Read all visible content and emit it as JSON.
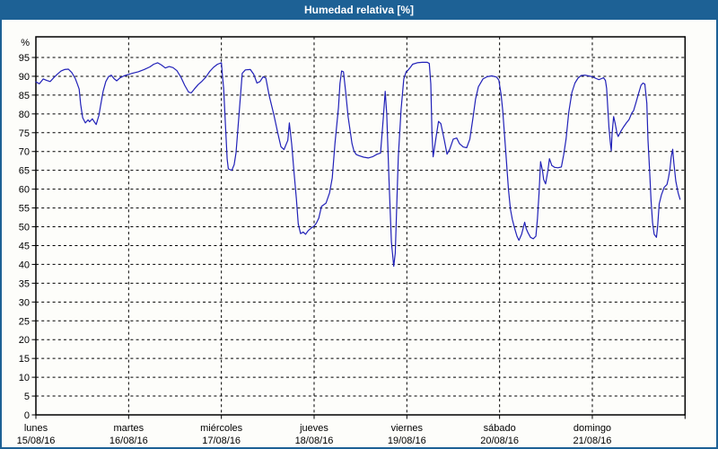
{
  "window": {
    "title": "Humedad relativa [%]"
  },
  "colors": {
    "title_bar_bg": "#1d6195",
    "title_text": "#ffffff",
    "outer_border": "#1d6195",
    "plot_bg": "#fdfdfa",
    "grid_color": "#000000",
    "axis_text": "#000000",
    "series_line": "#2121b8"
  },
  "chart_data": {
    "type": "line",
    "title": "Humedad relativa [%]",
    "ylabel": "%",
    "xlabel": "",
    "ylim": [
      0,
      100.5
    ],
    "y_tick_step": 5,
    "y_tick_max": 95,
    "grid": "dashed",
    "legend": "none",
    "x_axis": {
      "unit": "days",
      "total_hours": 168,
      "days": [
        {
          "name": "lunes",
          "date": "15/08/16"
        },
        {
          "name": "martes",
          "date": "16/08/16"
        },
        {
          "name": "miércoles",
          "date": "17/08/16"
        },
        {
          "name": "jueves",
          "date": "18/08/16"
        },
        {
          "name": "viernes",
          "date": "19/08/16"
        },
        {
          "name": "sábado",
          "date": "20/08/16"
        },
        {
          "name": "domingo",
          "date": "21/08/16"
        }
      ]
    },
    "series": [
      {
        "name": "Humedad relativa [%]",
        "color": "#2121b8",
        "points": [
          [
            0,
            88.5
          ],
          [
            0.9,
            88
          ],
          [
            1.9,
            89.3
          ],
          [
            2.8,
            88.9
          ],
          [
            3.7,
            88.6
          ],
          [
            4.6,
            89.6
          ],
          [
            5.6,
            90.6
          ],
          [
            6.5,
            91.4
          ],
          [
            7.4,
            91.8
          ],
          [
            8.4,
            91.9
          ],
          [
            9.3,
            91
          ],
          [
            10.2,
            89.4
          ],
          [
            10.7,
            88
          ],
          [
            11.2,
            86.6
          ],
          [
            11.6,
            82.5
          ],
          [
            12.1,
            79
          ],
          [
            12.8,
            77.6
          ],
          [
            13.5,
            78.4
          ],
          [
            13.9,
            77.9
          ],
          [
            14.6,
            78.7
          ],
          [
            15.1,
            77.9
          ],
          [
            15.6,
            77.2
          ],
          [
            16.3,
            79.6
          ],
          [
            16.7,
            82
          ],
          [
            17.4,
            86
          ],
          [
            18.1,
            88.6
          ],
          [
            18.8,
            89.9
          ],
          [
            19.5,
            90.3
          ],
          [
            20.2,
            89.4
          ],
          [
            20.9,
            88.8
          ],
          [
            21.8,
            89.6
          ],
          [
            22.8,
            90.1
          ],
          [
            23.9,
            90.5
          ],
          [
            25,
            90.8
          ],
          [
            26.5,
            91.2
          ],
          [
            28,
            91.8
          ],
          [
            29.5,
            92.5
          ],
          [
            30.5,
            93.2
          ],
          [
            31.5,
            93.6
          ],
          [
            32.5,
            93
          ],
          [
            33.5,
            92.2
          ],
          [
            34.5,
            92.6
          ],
          [
            35.5,
            92.3
          ],
          [
            36.5,
            91.5
          ],
          [
            37.5,
            89.8
          ],
          [
            38.5,
            87.6
          ],
          [
            39.5,
            85.8
          ],
          [
            40.2,
            85.6
          ],
          [
            41,
            86.6
          ],
          [
            42,
            87.8
          ],
          [
            43,
            88.7
          ],
          [
            44,
            89.8
          ],
          [
            45,
            91.3
          ],
          [
            46,
            92.4
          ],
          [
            47,
            93.2
          ],
          [
            48,
            93.6
          ],
          [
            48.3,
            90
          ],
          [
            48.6,
            86.8
          ],
          [
            49,
            78
          ],
          [
            49.5,
            68
          ],
          [
            49.8,
            65.4
          ],
          [
            50.7,
            65
          ],
          [
            51.3,
            66.5
          ],
          [
            51.8,
            69.7
          ],
          [
            52.7,
            81.6
          ],
          [
            53.4,
            90.8
          ],
          [
            54.2,
            91.7
          ],
          [
            55.5,
            91.8
          ],
          [
            56.4,
            90.5
          ],
          [
            57.2,
            88.2
          ],
          [
            58,
            88.6
          ],
          [
            58.8,
            89.9
          ],
          [
            59.5,
            89.5
          ],
          [
            60.4,
            84.8
          ],
          [
            61.6,
            79.7
          ],
          [
            62.7,
            74.5
          ],
          [
            63.4,
            71.3
          ],
          [
            64.2,
            70.5
          ],
          [
            65.2,
            73
          ],
          [
            65.6,
            77.6
          ],
          [
            66.2,
            72
          ],
          [
            66.8,
            64.5
          ],
          [
            67.4,
            57.5
          ],
          [
            67.9,
            50.8
          ],
          [
            68.5,
            48.2
          ],
          [
            69.2,
            48.6
          ],
          [
            69.8,
            48
          ],
          [
            70.5,
            49
          ],
          [
            71.3,
            49.7
          ],
          [
            72,
            50.2
          ],
          [
            72.6,
            51
          ],
          [
            73.2,
            52.3
          ],
          [
            73.9,
            55.4
          ],
          [
            75.1,
            56.3
          ],
          [
            76,
            59
          ],
          [
            76.7,
            63
          ],
          [
            77.4,
            72.1
          ],
          [
            78.3,
            81.6
          ],
          [
            78.7,
            88.1
          ],
          [
            79.1,
            91.4
          ],
          [
            79.6,
            91.2
          ],
          [
            80.1,
            86.4
          ],
          [
            80.8,
            79.2
          ],
          [
            81.8,
            72.1
          ],
          [
            82.3,
            70.2
          ],
          [
            82.9,
            69.2
          ],
          [
            83.6,
            68.9
          ],
          [
            84.8,
            68.5
          ],
          [
            86,
            68.3
          ],
          [
            87.1,
            68.6
          ],
          [
            88.3,
            69.3
          ],
          [
            89.2,
            69.6
          ],
          [
            89.9,
            79
          ],
          [
            90.4,
            86
          ],
          [
            90.8,
            80
          ],
          [
            91.4,
            62
          ],
          [
            92,
            46
          ],
          [
            92.6,
            39.5
          ],
          [
            93,
            43
          ],
          [
            93.4,
            55.9
          ],
          [
            93.8,
            68.6
          ],
          [
            94.5,
            81.2
          ],
          [
            95.2,
            89.3
          ],
          [
            95.8,
            91.2
          ],
          [
            96.2,
            91.5
          ],
          [
            97,
            92.5
          ],
          [
            97.5,
            93.2
          ],
          [
            98.7,
            93.6
          ],
          [
            100,
            93.7
          ],
          [
            101.3,
            93.7
          ],
          [
            101.8,
            93.4
          ],
          [
            102.2,
            88
          ],
          [
            102.5,
            75
          ],
          [
            102.8,
            68.6
          ],
          [
            103.6,
            74
          ],
          [
            104.2,
            78
          ],
          [
            104.8,
            77.4
          ],
          [
            105.7,
            73
          ],
          [
            106.4,
            69.3
          ],
          [
            107.1,
            70.6
          ],
          [
            108,
            73.3
          ],
          [
            108.9,
            73.6
          ],
          [
            109.6,
            72.1
          ],
          [
            110.6,
            71.2
          ],
          [
            111.5,
            71
          ],
          [
            112.3,
            73.3
          ],
          [
            113.1,
            78.8
          ],
          [
            113.8,
            84
          ],
          [
            114.5,
            87.2
          ],
          [
            115.7,
            89.3
          ],
          [
            116.8,
            89.9
          ],
          [
            118,
            90.1
          ],
          [
            119.2,
            89.8
          ],
          [
            119.8,
            89
          ],
          [
            120.4,
            85
          ],
          [
            120.8,
            81
          ],
          [
            121.6,
            70
          ],
          [
            122.3,
            60
          ],
          [
            122.8,
            54.7
          ],
          [
            123.3,
            51.9
          ],
          [
            123.9,
            49.6
          ],
          [
            124.5,
            47.5
          ],
          [
            125,
            46.4
          ],
          [
            125.7,
            48
          ],
          [
            126.5,
            51.2
          ],
          [
            126.9,
            49.5
          ],
          [
            127.4,
            48.3
          ],
          [
            128,
            47.2
          ],
          [
            128.7,
            46.8
          ],
          [
            129.4,
            47.5
          ],
          [
            129.8,
            52
          ],
          [
            130.2,
            58.9
          ],
          [
            130.6,
            67.3
          ],
          [
            131.1,
            65
          ],
          [
            131.4,
            62.6
          ],
          [
            131.9,
            61.4
          ],
          [
            132.5,
            65
          ],
          [
            132.9,
            68.1
          ],
          [
            133.5,
            66.3
          ],
          [
            134.2,
            65.8
          ],
          [
            135.1,
            65.7
          ],
          [
            136,
            65.9
          ],
          [
            136.6,
            69.2
          ],
          [
            137.2,
            73.3
          ],
          [
            137.9,
            80.4
          ],
          [
            138.7,
            85.7
          ],
          [
            139.5,
            88.2
          ],
          [
            140.3,
            89.5
          ],
          [
            141.1,
            90.2
          ],
          [
            142.1,
            90.3
          ],
          [
            143,
            90.1
          ],
          [
            144,
            89.9
          ],
          [
            145,
            89.4
          ],
          [
            145.7,
            89.1
          ],
          [
            146.4,
            89.4
          ],
          [
            146.9,
            89.6
          ],
          [
            147.4,
            88.9
          ],
          [
            147.7,
            86.8
          ],
          [
            148.1,
            80
          ],
          [
            148.3,
            76.4
          ],
          [
            148.7,
            72
          ],
          [
            148.9,
            70.2
          ],
          [
            149.1,
            74.5
          ],
          [
            149.5,
            79.3
          ],
          [
            149.9,
            77.5
          ],
          [
            150.4,
            74.8
          ],
          [
            150.7,
            74
          ],
          [
            151.4,
            75.4
          ],
          [
            152,
            76.4
          ],
          [
            152.8,
            77.6
          ],
          [
            153.5,
            78.5
          ],
          [
            154.2,
            80.2
          ],
          [
            154.7,
            80.9
          ],
          [
            155.3,
            83
          ],
          [
            155.9,
            85.2
          ],
          [
            156.6,
            87.6
          ],
          [
            157.1,
            88.2
          ],
          [
            157.6,
            87.9
          ],
          [
            158.1,
            82.8
          ],
          [
            158.4,
            73
          ],
          [
            158.8,
            65.4
          ],
          [
            159.2,
            57
          ],
          [
            159.6,
            51.1
          ],
          [
            160,
            48
          ],
          [
            160.6,
            47.2
          ],
          [
            160.9,
            50
          ],
          [
            161.3,
            56.1
          ],
          [
            161.9,
            58.5
          ],
          [
            162.6,
            60.5
          ],
          [
            163.3,
            61.2
          ],
          [
            163.7,
            63
          ],
          [
            164.1,
            65.4
          ],
          [
            164.4,
            68.5
          ],
          [
            164.8,
            70.6
          ],
          [
            165.1,
            67
          ],
          [
            165.6,
            62.1
          ],
          [
            166.2,
            59
          ],
          [
            166.7,
            57.3
          ]
        ]
      }
    ]
  }
}
